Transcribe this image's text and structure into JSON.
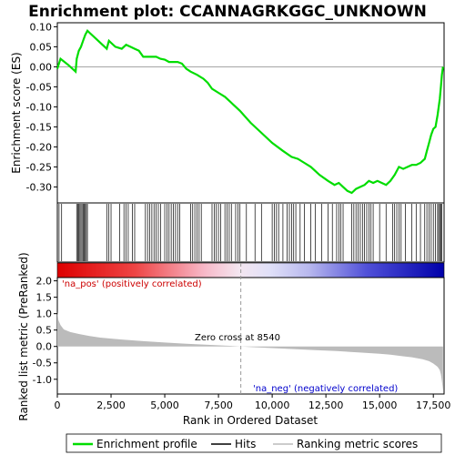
{
  "chart_data": {
    "type": "line",
    "title": "Enrichment plot: CCANNAGRKGGC_UNKNOWN",
    "es_panel": {
      "ylabel": "Enrichment score (ES)",
      "ylim": [
        -0.34,
        0.11
      ],
      "yticks": [
        "0.10",
        "0.05",
        "0.00",
        "-0.05",
        "-0.10",
        "-0.15",
        "-0.20",
        "-0.25",
        "-0.30"
      ],
      "ytick_values": [
        0.1,
        0.05,
        0.0,
        -0.05,
        -0.1,
        -0.15,
        -0.2,
        -0.25,
        -0.3
      ],
      "series_name": "Enrichment profile",
      "color": "#00dd00",
      "x": [
        0,
        150,
        500,
        850,
        900,
        1000,
        1100,
        1200,
        1300,
        1400,
        1500,
        1800,
        2100,
        2300,
        2400,
        2500,
        2700,
        3000,
        3200,
        3400,
        3600,
        3800,
        4000,
        4200,
        4400,
        4600,
        4800,
        5000,
        5200,
        5400,
        5600,
        5800,
        6000,
        6200,
        6500,
        6800,
        7000,
        7200,
        7500,
        7800,
        8100,
        8500,
        9000,
        9500,
        10000,
        10500,
        10900,
        11200,
        11500,
        11800,
        12200,
        12600,
        12900,
        13100,
        13300,
        13500,
        13700,
        13900,
        14100,
        14300,
        14500,
        14700,
        14900,
        15100,
        15300,
        15500,
        15700,
        15900,
        16100,
        16300,
        16500,
        16700,
        16900,
        17100,
        17200,
        17300,
        17400,
        17500,
        17600,
        17700,
        17800,
        17850,
        17900,
        17950
      ],
      "y": [
        -0.005,
        0.02,
        0.005,
        -0.012,
        0.02,
        0.04,
        0.05,
        0.065,
        0.08,
        0.09,
        0.085,
        0.07,
        0.055,
        0.045,
        0.065,
        0.06,
        0.05,
        0.045,
        0.055,
        0.05,
        0.045,
        0.04,
        0.025,
        0.025,
        0.025,
        0.025,
        0.02,
        0.018,
        0.012,
        0.012,
        0.012,
        0.008,
        -0.005,
        -0.012,
        -0.02,
        -0.03,
        -0.04,
        -0.055,
        -0.065,
        -0.075,
        -0.09,
        -0.11,
        -0.14,
        -0.165,
        -0.19,
        -0.21,
        -0.225,
        -0.23,
        -0.24,
        -0.25,
        -0.27,
        -0.285,
        -0.295,
        -0.29,
        -0.3,
        -0.31,
        -0.315,
        -0.305,
        -0.3,
        -0.295,
        -0.285,
        -0.29,
        -0.285,
        -0.29,
        -0.295,
        -0.285,
        -0.27,
        -0.25,
        -0.255,
        -0.25,
        -0.245,
        -0.245,
        -0.24,
        -0.23,
        -0.21,
        -0.19,
        -0.17,
        -0.155,
        -0.15,
        -0.12,
        -0.08,
        -0.05,
        -0.02,
        0.0
      ]
    },
    "hits_panel": {
      "hit_positions": [
        80,
        200,
        900,
        950,
        1000,
        1050,
        1100,
        1150,
        1200,
        1250,
        1300,
        1350,
        1400,
        2300,
        2400,
        2500,
        2900,
        3100,
        3200,
        3300,
        3500,
        3600,
        4100,
        4200,
        4300,
        4400,
        4500,
        4600,
        4700,
        4800,
        5000,
        5100,
        5200,
        5300,
        5400,
        5500,
        5600,
        5700,
        6200,
        6300,
        6400,
        6500,
        6600,
        6700,
        7200,
        7300,
        7400,
        7500,
        7600,
        7800,
        7900,
        8000,
        8100,
        8300,
        8400,
        8500,
        8800,
        9200,
        9500,
        10000,
        10100,
        10200,
        10300,
        10500,
        10700,
        10800,
        10900,
        11000,
        11100,
        11300,
        11500,
        11800,
        12000,
        12300,
        12600,
        12800,
        13000,
        13100,
        13200,
        13300,
        13700,
        13800,
        13900,
        14000,
        14100,
        14200,
        14300,
        14400,
        14500,
        14600,
        14700,
        15000,
        15300,
        15600,
        15700,
        15800,
        15900,
        16000,
        16200,
        16500,
        16700,
        16900,
        17100,
        17200,
        17300,
        17400,
        17500,
        17600,
        17700,
        17750,
        17800,
        17850,
        17900
      ]
    },
    "ranked_panel": {
      "ylabel": "Ranked list metric (PreRanked)",
      "xlabel": "Rank in Ordered Dataset",
      "ylim": [
        -1.45,
        2.1
      ],
      "yticks": [
        "2.0",
        "1.5",
        "1.0",
        "0.5",
        "0.0",
        "-0.5",
        "-1.0"
      ],
      "ytick_values": [
        2.0,
        1.5,
        1.0,
        0.5,
        0.0,
        -0.5,
        -1.0
      ],
      "x": [
        0,
        50,
        150,
        300,
        600,
        1000,
        1500,
        2000,
        3000,
        4000,
        5000,
        6000,
        7000,
        8000,
        8540,
        9000,
        10000,
        11000,
        12000,
        13000,
        14000,
        15000,
        15500,
        16000,
        16500,
        17000,
        17300,
        17500,
        17700,
        17800,
        17850,
        17900,
        17950
      ],
      "y": [
        1.05,
        0.8,
        0.65,
        0.52,
        0.44,
        0.38,
        0.32,
        0.27,
        0.21,
        0.16,
        0.12,
        0.08,
        0.05,
        0.02,
        0.0,
        -0.02,
        -0.05,
        -0.08,
        -0.11,
        -0.14,
        -0.18,
        -0.22,
        -0.25,
        -0.29,
        -0.33,
        -0.39,
        -0.45,
        -0.52,
        -0.62,
        -0.72,
        -0.85,
        -1.05,
        -1.35
      ],
      "zero_cross_label": "Zero cross at 8540",
      "zero_cross": 8540,
      "pos_label": "'na_pos' (positively correlated)",
      "neg_label": "'na_neg' (negatively correlated)"
    },
    "xlim": [
      0,
      18000
    ],
    "xticks": [
      "0",
      "2,500",
      "5,000",
      "7,500",
      "10,000",
      "12,500",
      "15,000",
      "17,500"
    ],
    "xtick_values": [
      0,
      2500,
      5000,
      7500,
      10000,
      12500,
      15000,
      17500
    ],
    "legend": {
      "placement": "bottom",
      "items": [
        "Enrichment profile",
        "Hits",
        "Ranking metric scores"
      ]
    },
    "colors": {
      "profile": "#00dd00",
      "hits": "#000000",
      "ranked": "#bbbbbb",
      "grid": "#888888"
    }
  }
}
